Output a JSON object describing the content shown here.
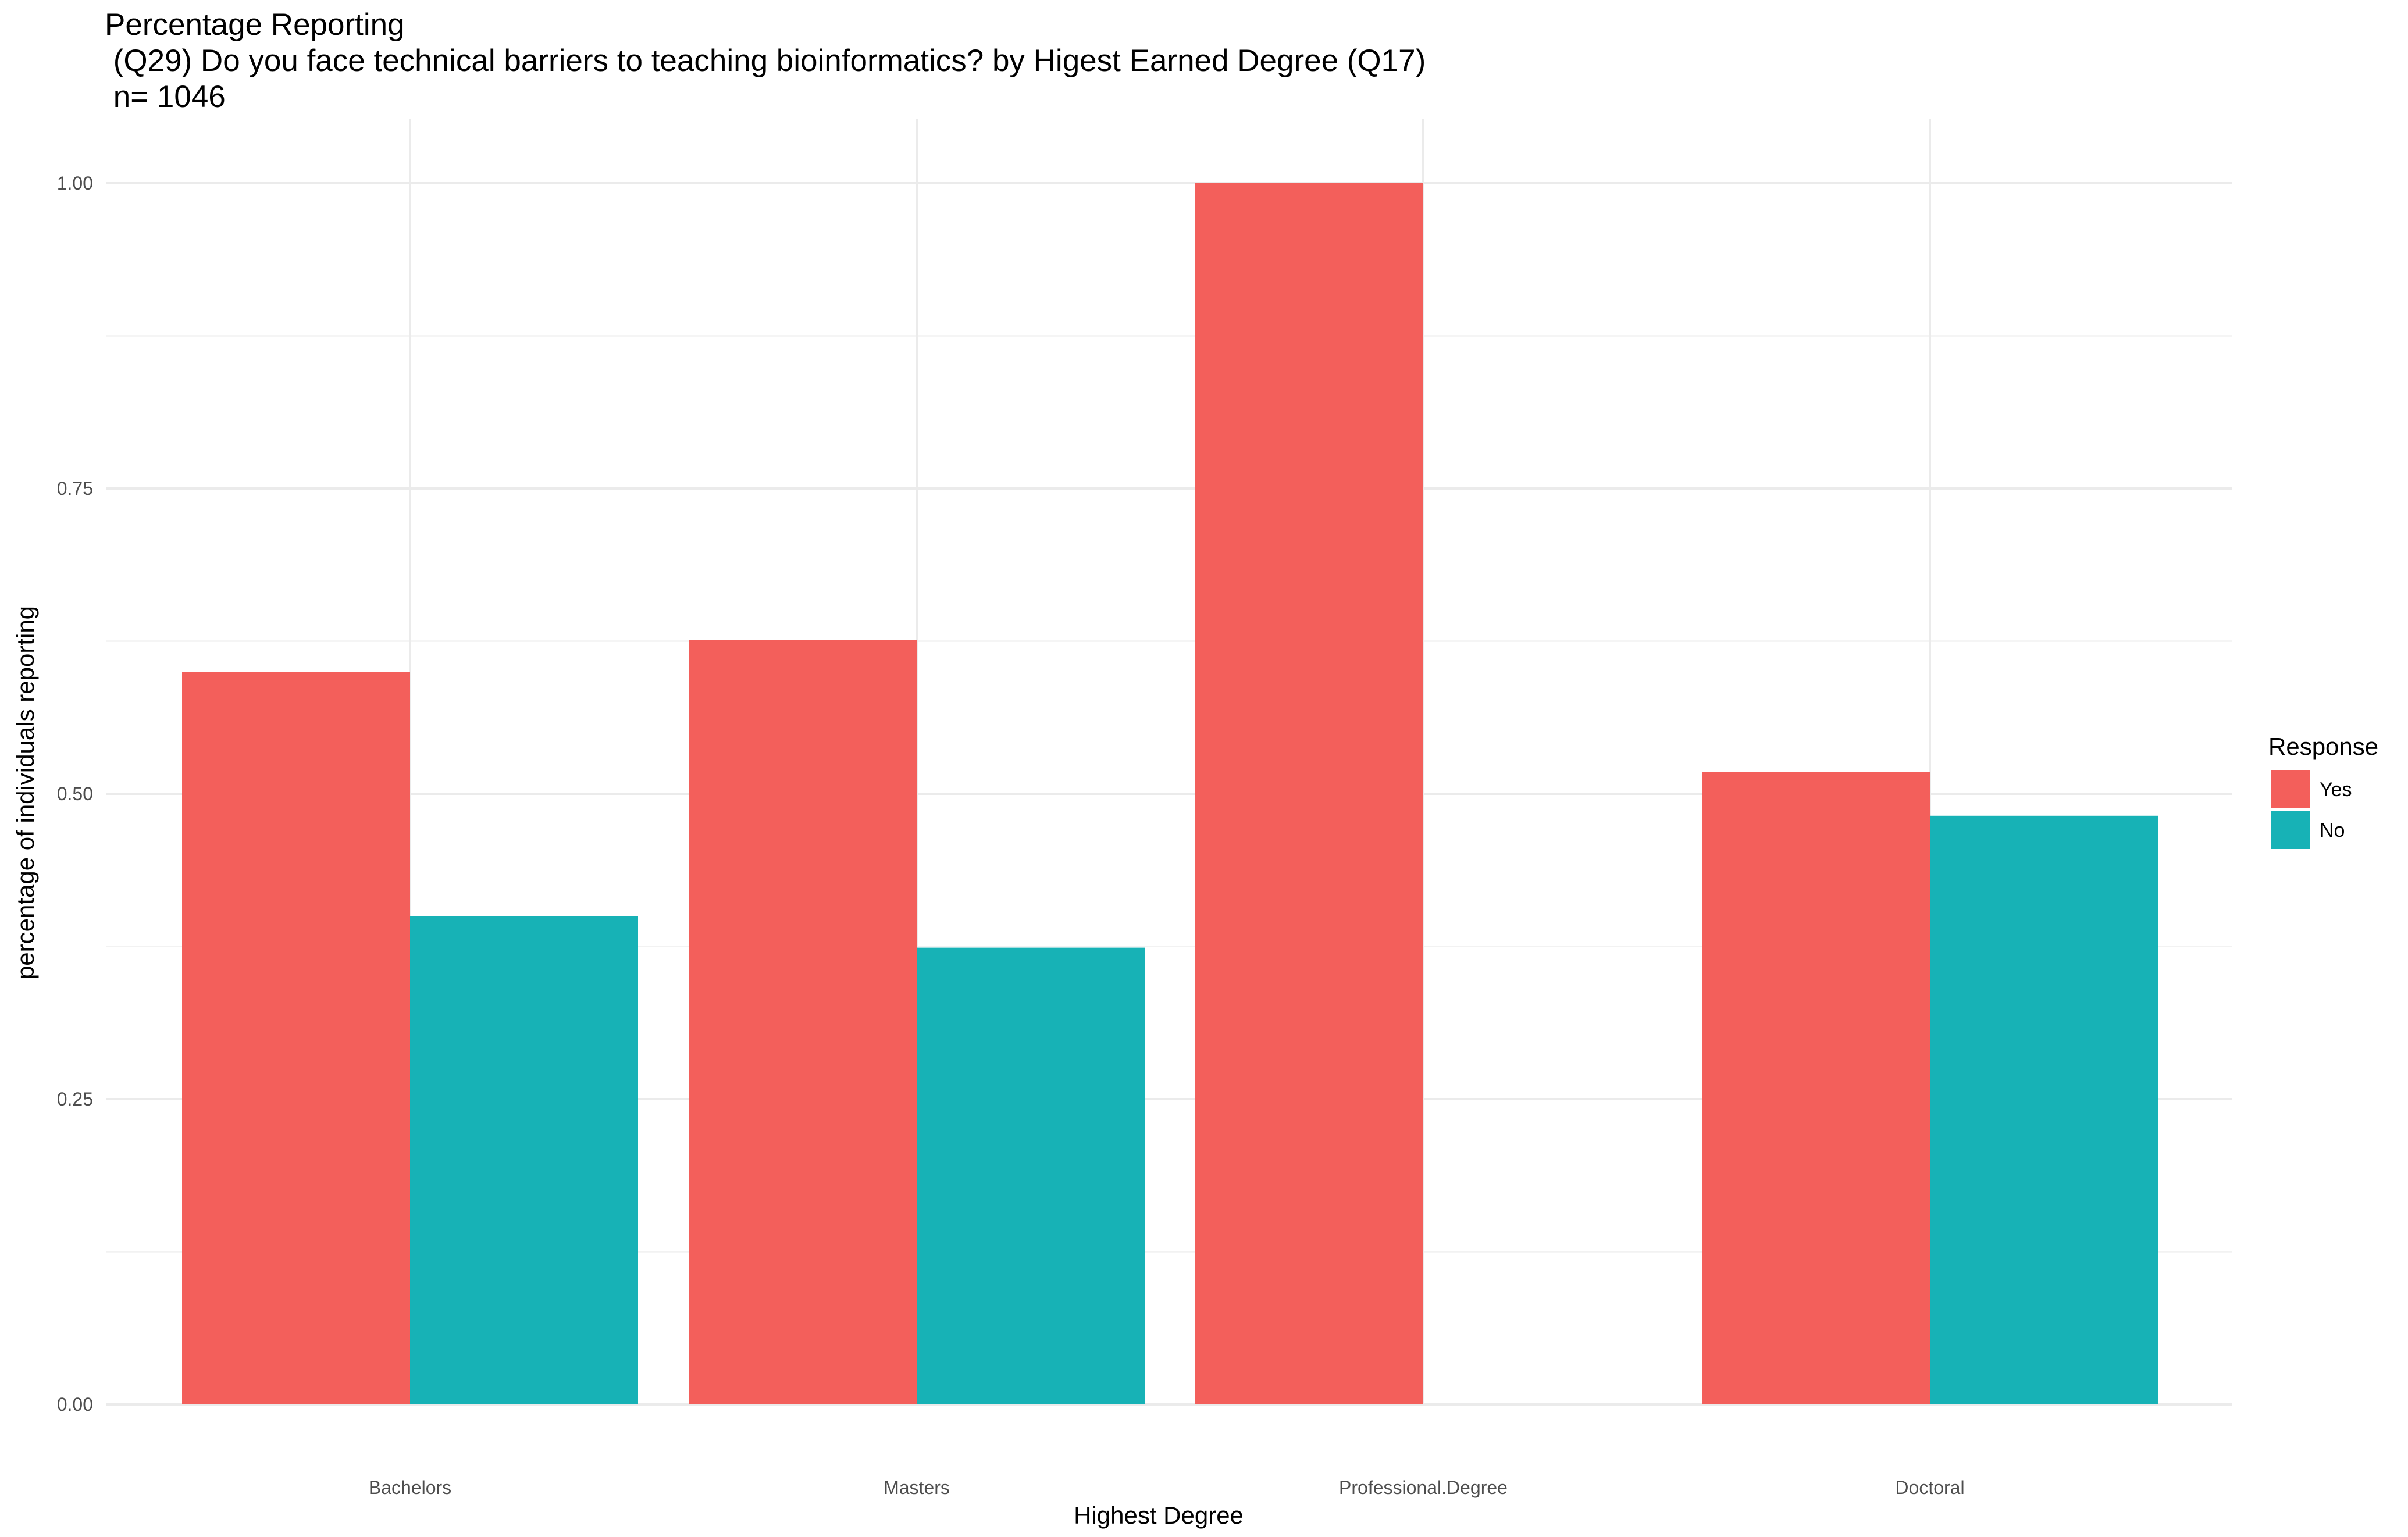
{
  "chart_data": {
    "type": "bar",
    "title": "Percentage Reporting",
    "subtitle_lines": [
      " (Q29) Do you face technical barriers to teaching bioinformatics? by Higest Earned Degree (Q17)",
      " n= 1046"
    ],
    "xlabel": "Highest Degree",
    "ylabel": "percentage of individuals reporting",
    "categories": [
      "Bachelors",
      "Masters",
      "Professional.Degree",
      "Doctoral"
    ],
    "series": [
      {
        "name": "Yes",
        "color": "#F35F5B",
        "values": [
          0.6,
          0.626,
          1.0,
          0.518
        ]
      },
      {
        "name": "No",
        "color": "#17B2B6",
        "values": [
          0.4,
          0.374,
          0.0,
          0.482
        ]
      }
    ],
    "ylim": [
      0,
      1.0
    ],
    "yticks": [
      0.0,
      0.25,
      0.5,
      0.75,
      1.0
    ],
    "ytick_labels": [
      "0.00",
      "0.25",
      "0.50",
      "0.75",
      "1.00"
    ],
    "grid": true,
    "legend": {
      "title": "Response",
      "placement": "right"
    }
  }
}
